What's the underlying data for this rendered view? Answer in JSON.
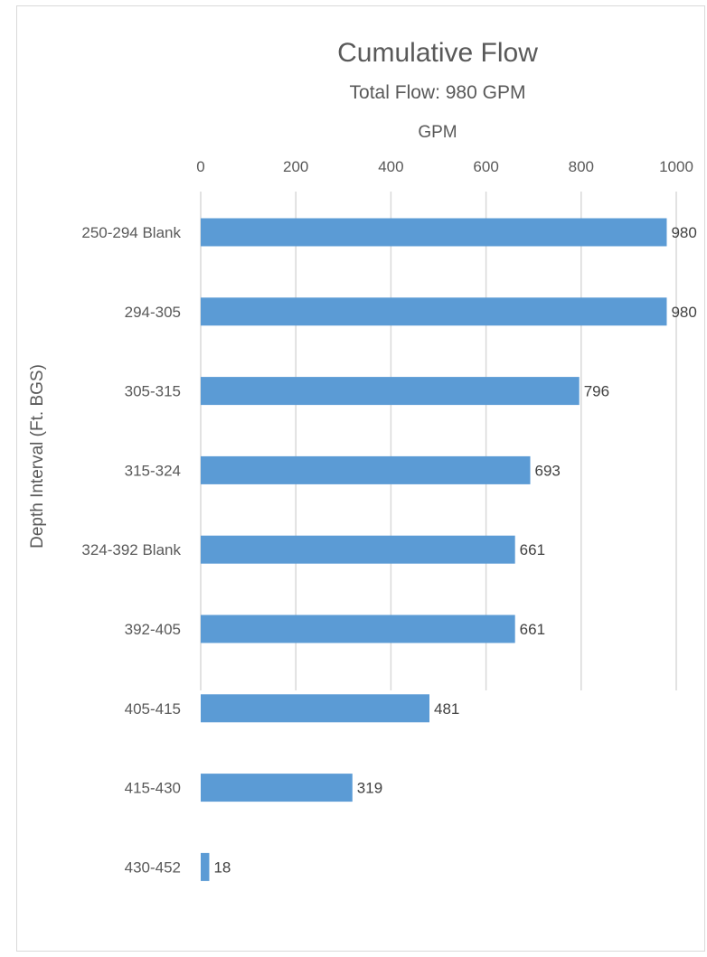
{
  "chart_data": {
    "type": "bar",
    "orientation": "horizontal",
    "title": "Cumulative Flow",
    "subtitle": "Total Flow: 980 GPM",
    "xlabel": "GPM",
    "ylabel": "Depth Interval (Ft. BGS)",
    "xlim": [
      0,
      1000
    ],
    "x_ticks": [
      0,
      200,
      400,
      600,
      800,
      1000
    ],
    "x_axis_position": "top",
    "grid": true,
    "legend": "none",
    "categories": [
      "250-294 Blank",
      "294-305",
      "305-315",
      "315-324",
      "324-392 Blank",
      "392-405",
      "405-415",
      "415-430",
      "430-452"
    ],
    "values": [
      980,
      980,
      796,
      693,
      661,
      661,
      481,
      319,
      18
    ],
    "data_labels": [
      "980",
      "980",
      "796",
      "693",
      "661",
      "661",
      "481",
      "319",
      "18"
    ],
    "bar_color": "#5b9bd5",
    "grid_color": "#d9d9d9",
    "text_color": "#595959"
  }
}
